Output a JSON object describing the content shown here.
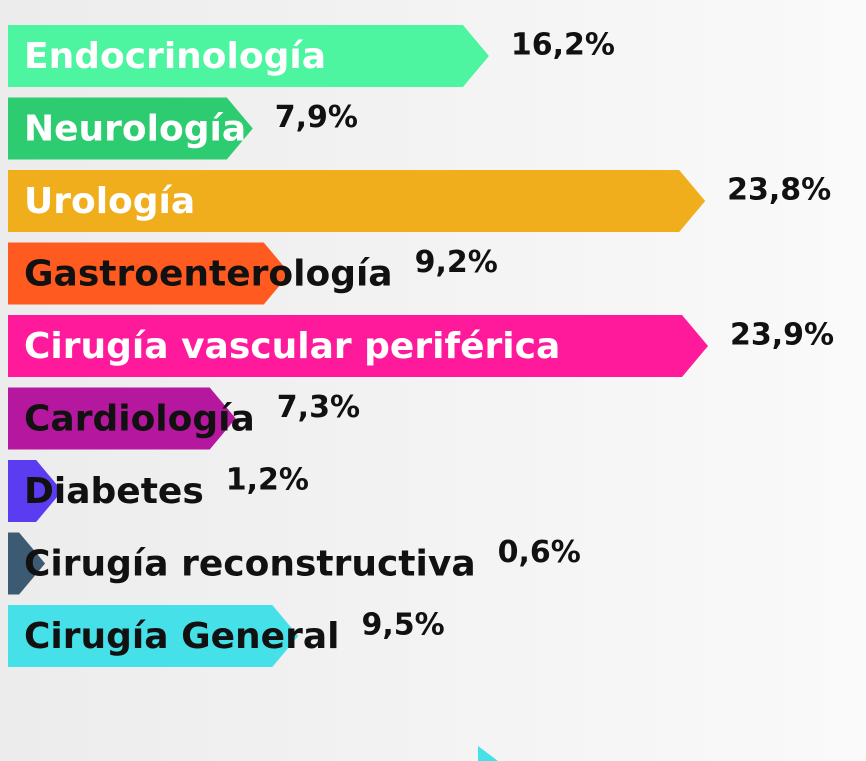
{
  "chart_data": {
    "type": "bar",
    "orientation": "horizontal",
    "categories": [
      "Endocrinología",
      "Neurología",
      "Urología",
      "Gastroenterología",
      "Cirugía vascular periférica",
      "Cardiología",
      "Diabetes",
      "Cirugía reconstructiva",
      "Cirugía General"
    ],
    "values": [
      16.2,
      7.9,
      23.8,
      9.2,
      23.9,
      7.3,
      1.2,
      0.6,
      9.5
    ],
    "value_labels": [
      "16,2%",
      "7,9%",
      "23,8%",
      "9,2%",
      "23,9%",
      "7,3%",
      "1,2%",
      "0,6%",
      "9,5%"
    ],
    "colors": [
      "#4df5a0",
      "#2ecc71",
      "#f0ad1c",
      "#ff5a1f",
      "#ff1a9c",
      "#b5179e",
      "#5b3cf0",
      "#3d5a73",
      "#45e0e8"
    ]
  }
}
